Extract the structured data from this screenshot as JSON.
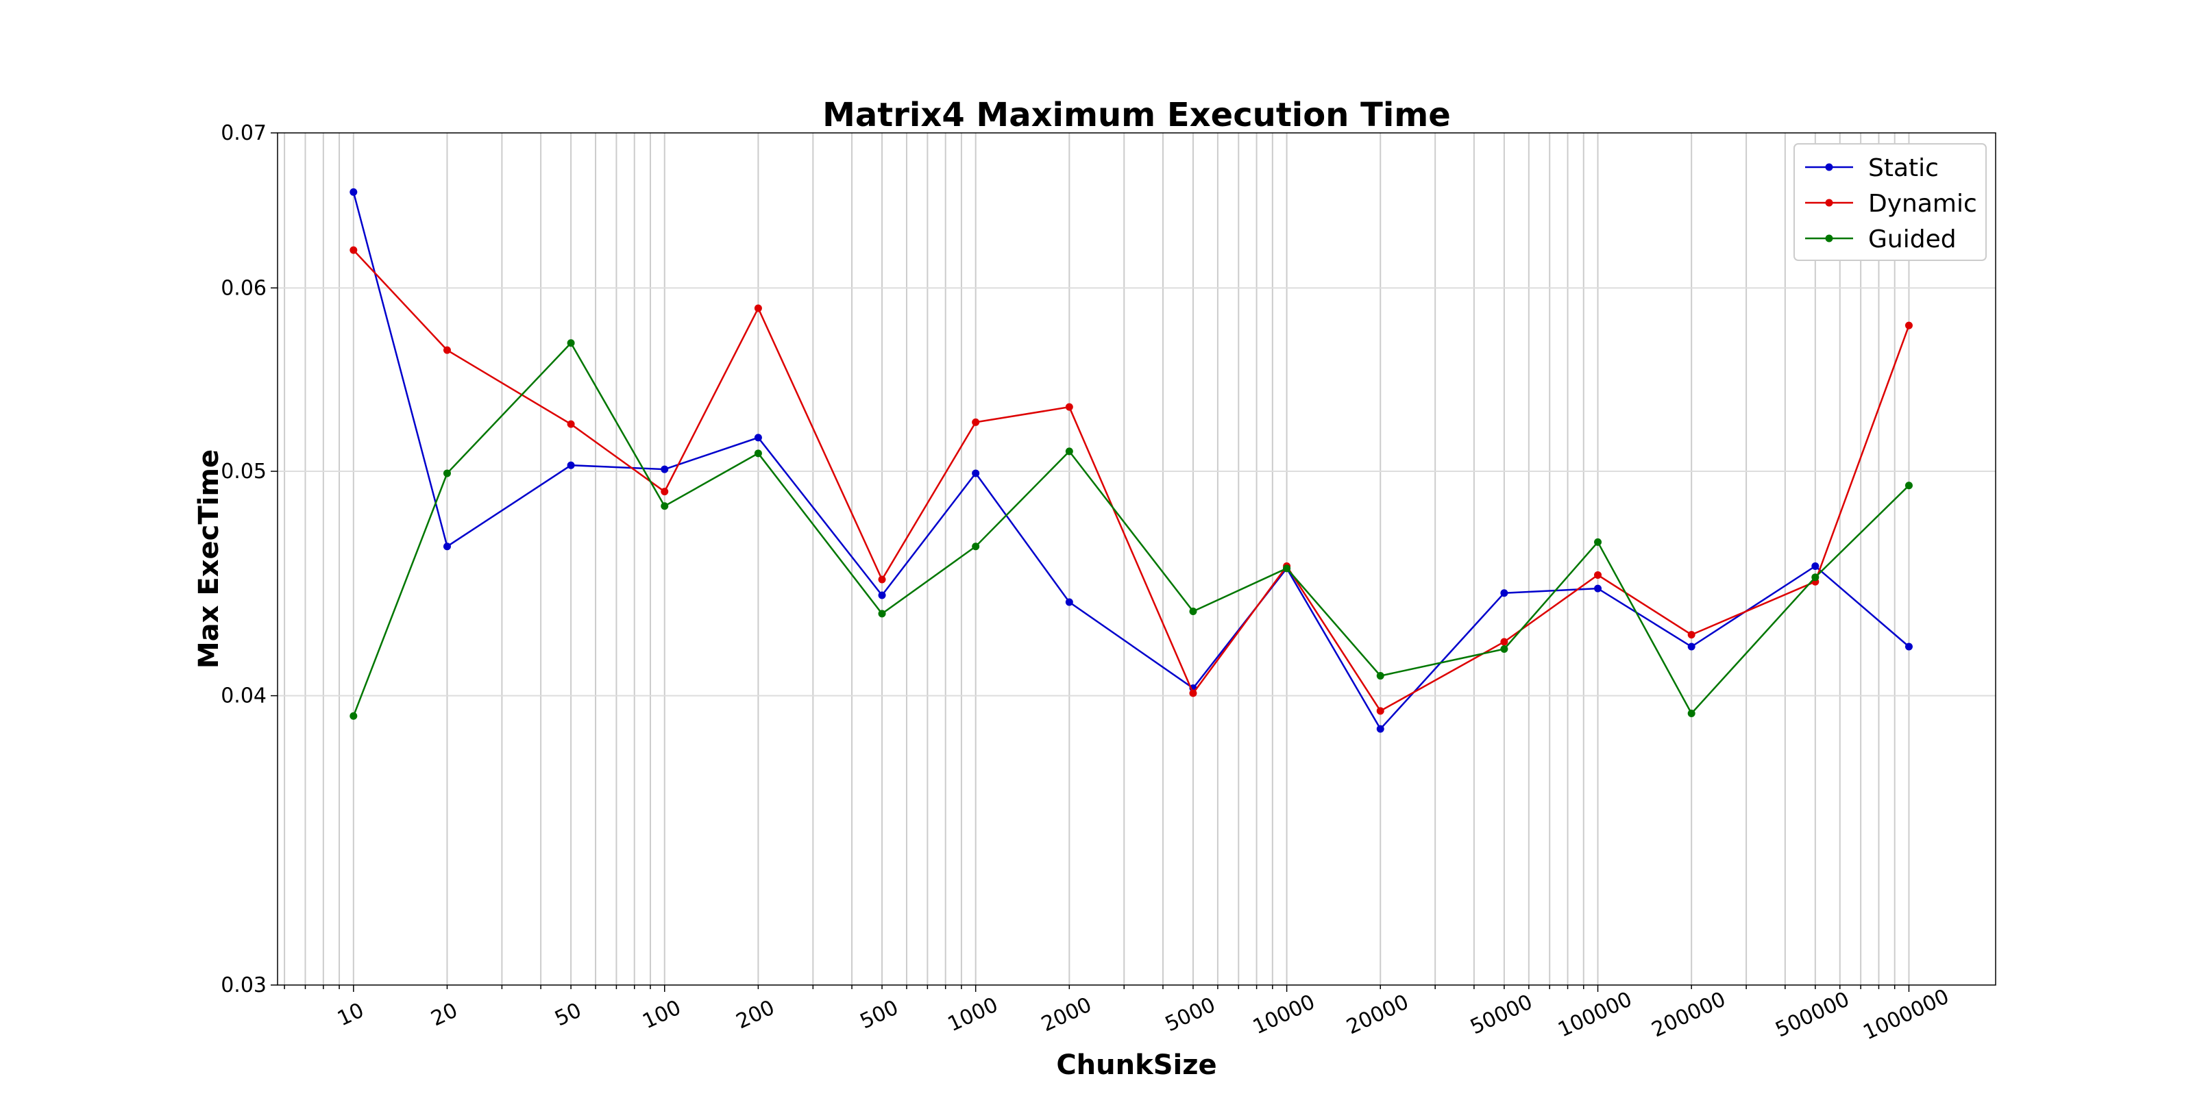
{
  "chart_data": {
    "type": "line",
    "title": "Matrix4 Maximum Execution Time",
    "xlabel": "ChunkSize",
    "ylabel": "Max ExecTime",
    "x_scale": "log",
    "y_scale": "log",
    "x": [
      10,
      20,
      50,
      100,
      200,
      500,
      1000,
      2000,
      5000,
      10000,
      20000,
      50000,
      100000,
      200000,
      500000,
      1000000
    ],
    "x_tick_labels": [
      "10",
      "20",
      "50",
      "100",
      "200",
      "500",
      "1000",
      "2000",
      "5000",
      "10000",
      "20000",
      "50000",
      "100000",
      "200000",
      "500000",
      "1000000"
    ],
    "xlim": [
      5.7,
      1900000
    ],
    "ylim": [
      0.03,
      0.07
    ],
    "y_ticks": [
      0.03,
      0.04,
      0.05,
      0.06,
      0.07
    ],
    "y_tick_labels": [
      "0.03",
      "0.04",
      "0.05",
      "0.06",
      "0.07"
    ],
    "grid": true,
    "legend_position": "top-right",
    "series": [
      {
        "name": "Static",
        "color": "#0000cc",
        "values": [
          0.066,
          0.0464,
          0.0503,
          0.0501,
          0.0517,
          0.0442,
          0.0499,
          0.0439,
          0.0403,
          0.0454,
          0.0387,
          0.0443,
          0.0445,
          0.042,
          0.0455,
          0.042
        ]
      },
      {
        "name": "Dynamic",
        "color": "#dd0000",
        "values": [
          0.0623,
          0.0564,
          0.0524,
          0.049,
          0.0588,
          0.0449,
          0.0525,
          0.0533,
          0.0401,
          0.0455,
          0.0394,
          0.0422,
          0.0451,
          0.0425,
          0.0448,
          0.0578
        ]
      },
      {
        "name": "Guided",
        "color": "#007700",
        "values": [
          0.0392,
          0.0499,
          0.0568,
          0.0483,
          0.0509,
          0.0434,
          0.0464,
          0.051,
          0.0435,
          0.0454,
          0.0408,
          0.0419,
          0.0466,
          0.0393,
          0.045,
          0.0493
        ]
      }
    ]
  }
}
